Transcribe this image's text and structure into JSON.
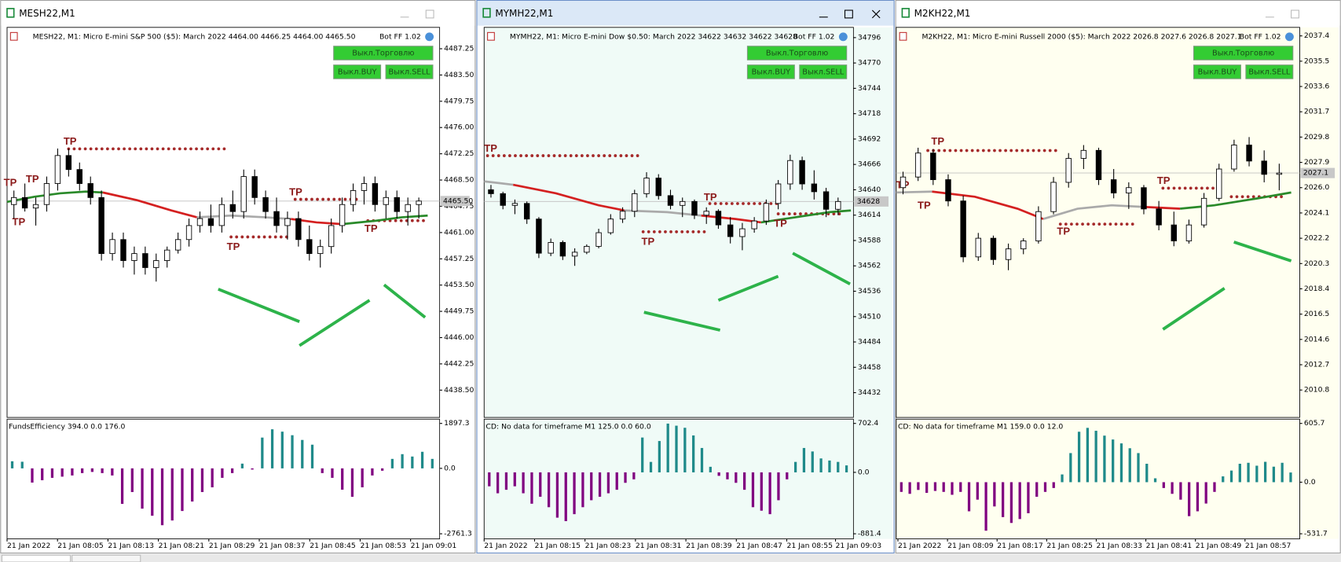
{
  "windows": [
    {
      "title": "MESH22,M1",
      "info": "MESH22, M1:  Micro E-mini S&P 500 ($5): March 2022  4464.00 4466.25 4464.00 4465.50",
      "bot": "Bot FF 1.02",
      "buttons": [
        "Выкл.Торговлю",
        "Выкл.BUY",
        "Выкл.SELL"
      ],
      "price_ylim": [
        4434.6,
        4490.3
      ],
      "price_ticks": [
        4487.25,
        {
          "value": 4483.5,
          "label": "4483.50"
        },
        4479.75,
        {
          "value": 4476,
          "label": "4476.00"
        },
        4472.25,
        {
          "value": 4468.5,
          "label": "4468.50"
        },
        4464.75,
        {
          "value": 4461,
          "label": "4461.00"
        },
        4457.25,
        {
          "value": 4453.5,
          "label": "4453.50"
        },
        4449.75,
        {
          "value": 4446,
          "label": "4446.00"
        },
        4442.25,
        {
          "value": 4438.5,
          "label": "4438.50"
        }
      ],
      "current_price": {
        "value": 4465.5,
        "label": "4465.50"
      },
      "tp_labels": [
        "TP",
        "TP",
        "TP",
        "TP",
        "TP",
        "TP",
        "TP"
      ],
      "candles": [
        [
          4465,
          4467,
          4463,
          4466
        ],
        [
          4466,
          4468,
          4464,
          4464.5
        ],
        [
          4464.5,
          4466,
          4462,
          4465
        ],
        [
          4465,
          4469,
          4464,
          4468
        ],
        [
          4468,
          4473,
          4467,
          4472
        ],
        [
          4472,
          4473,
          4469,
          4470
        ],
        [
          4470,
          4471,
          4467,
          4468
        ],
        [
          4468,
          4469,
          4465,
          4466
        ],
        [
          4466,
          4467,
          4457,
          4458
        ],
        [
          4458,
          4461,
          4457,
          4460
        ],
        [
          4460,
          4461,
          4456,
          4457
        ],
        [
          4457,
          4459,
          4455,
          4458
        ],
        [
          4458,
          4459,
          4455,
          4456
        ],
        [
          4456,
          4458,
          4454,
          4457
        ],
        [
          4457,
          4459,
          4456,
          4458.5
        ],
        [
          4458.5,
          4461,
          4458,
          4460
        ],
        [
          4460,
          4463,
          4459,
          4462
        ],
        [
          4462,
          4464,
          4461,
          4463
        ],
        [
          4463,
          4465,
          4461,
          4462
        ],
        [
          4462,
          4466,
          4461,
          4465
        ],
        [
          4465,
          4467,
          4463,
          4464
        ],
        [
          4464,
          4470,
          4463,
          4469
        ],
        [
          4469,
          4470,
          4465,
          4466
        ],
        [
          4466,
          4467,
          4463,
          4464
        ],
        [
          4464,
          4466,
          4461,
          4462
        ],
        [
          4462,
          4464,
          4460,
          4463
        ],
        [
          4463,
          4464,
          4459,
          4460
        ],
        [
          4460,
          4462,
          4457,
          4458
        ],
        [
          4458,
          4460,
          4456,
          4459
        ],
        [
          4459,
          4463,
          4458,
          4462
        ],
        [
          4462,
          4466,
          4461,
          4465
        ],
        [
          4465,
          4468,
          4464,
          4467
        ],
        [
          4467,
          4469,
          4465,
          4468
        ],
        [
          4468,
          4469,
          4464,
          4465
        ],
        [
          4465,
          4467,
          4463,
          4466
        ],
        [
          4466,
          4467,
          4463,
          4464
        ],
        [
          4464,
          4466,
          4462,
          4465
        ],
        [
          4465,
          4466,
          4463,
          4465.5
        ]
      ],
      "indicator": {
        "label": "FundsEfficiency 394.0 0.0 176.0",
        "ylim": [
          -2761.3,
          1897.3
        ],
        "ticks": [
          1897.3,
          {
            "value": 0,
            "label": "0.0"
          },
          -2761.3
        ],
        "values": [
          300,
          280,
          -600,
          -500,
          -400,
          -350,
          -300,
          -200,
          -150,
          -200,
          -300,
          -1500,
          -1000,
          -1700,
          -2000,
          -2400,
          -2200,
          -1800,
          -1400,
          -1000,
          -800,
          -400,
          -200,
          200,
          -50,
          1300,
          1650,
          1550,
          1400,
          1200,
          1000,
          -200,
          -400,
          -900,
          -1200,
          -800,
          -300,
          -100,
          400,
          600,
          500,
          700,
          400
        ]
      },
      "time_labels": [
        "21 Jan 2022",
        "21 Jan 08:05",
        "21 Jan 08:13",
        "21 Jan 08:21",
        "21 Jan 08:29",
        "21 Jan 08:37",
        "21 Jan 08:45",
        "21 Jan 08:53",
        "21 Jan 09:01"
      ]
    },
    {
      "title": "MYMH22,M1",
      "info": "MYMH22, M1:  Micro E-mini Dow $0.50: March 2022  34622 34632 34622 34628",
      "bot": "Bot FF 1.02",
      "buttons": [
        "Выкл.Торговлю",
        "Выкл.BUY",
        "Выкл.SELL"
      ],
      "price_ylim": [
        34406.6,
        34806.5
      ],
      "price_ticks": [
        34796,
        34770,
        34744,
        34718,
        34692,
        34666,
        34640,
        34614,
        34588,
        34562,
        34536,
        34510,
        34484,
        34458,
        34432
      ],
      "current_price": {
        "value": 34628,
        "label": "34628"
      },
      "tp_labels": [
        "TP",
        "TP",
        "TP",
        "TP"
      ],
      "candles": [
        [
          34640,
          34645,
          34632,
          34636
        ],
        [
          34636,
          34638,
          34620,
          34624
        ],
        [
          34624,
          34630,
          34615,
          34626
        ],
        [
          34626,
          34628,
          34605,
          34610
        ],
        [
          34610,
          34612,
          34570,
          34575
        ],
        [
          34575,
          34590,
          34572,
          34586
        ],
        [
          34586,
          34588,
          34568,
          34572
        ],
        [
          34572,
          34580,
          34562,
          34576
        ],
        [
          34576,
          34584,
          34574,
          34582
        ],
        [
          34582,
          34600,
          34580,
          34596
        ],
        [
          34596,
          34615,
          34594,
          34610
        ],
        [
          34610,
          34622,
          34606,
          34618
        ],
        [
          34618,
          34640,
          34612,
          34636
        ],
        [
          34636,
          34658,
          34632,
          34652
        ],
        [
          34652,
          34656,
          34630,
          34634
        ],
        [
          34634,
          34640,
          34620,
          34624
        ],
        [
          34624,
          34632,
          34612,
          34628
        ],
        [
          34628,
          34630,
          34610,
          34614
        ],
        [
          34614,
          34622,
          34605,
          34618
        ],
        [
          34618,
          34620,
          34600,
          34604
        ],
        [
          34604,
          34612,
          34585,
          34592
        ],
        [
          34592,
          34606,
          34578,
          34600
        ],
        [
          34600,
          34612,
          34596,
          34608
        ],
        [
          34608,
          34630,
          34604,
          34626
        ],
        [
          34626,
          34650,
          34620,
          34646
        ],
        [
          34646,
          34676,
          34640,
          34670
        ],
        [
          34670,
          34674,
          34640,
          34646
        ],
        [
          34646,
          34660,
          34630,
          34638
        ],
        [
          34638,
          34642,
          34612,
          34620
        ],
        [
          34620,
          34632,
          34614,
          34628
        ]
      ],
      "indicator": {
        "label": "CD: No data for timeframe M1 125.0 0.0 60.0",
        "ylim": [
          -881.4,
          702.4
        ],
        "ticks": [
          702.4,
          {
            "value": 0,
            "label": "0.0"
          },
          -881.4
        ],
        "values": [
          -200,
          -300,
          -250,
          -200,
          -300,
          -450,
          -350,
          -500,
          -650,
          -700,
          -600,
          -500,
          -400,
          -350,
          -300,
          -250,
          -150,
          -100,
          500,
          150,
          450,
          700,
          670,
          640,
          530,
          350,
          80,
          -50,
          -100,
          -150,
          -250,
          -500,
          -550,
          -600,
          -400,
          -100,
          150,
          350,
          300,
          200,
          170,
          150,
          100
        ]
      },
      "time_labels": [
        "21 Jan 2022",
        "21 Jan 08:15",
        "21 Jan 08:23",
        "21 Jan 08:31",
        "21 Jan 08:39",
        "21 Jan 08:47",
        "21 Jan 08:55",
        "21 Jan 09:03"
      ]
    },
    {
      "title": "M2KH22,M1",
      "info": "M2KH22, M1:  Micro E-mini Russell 2000 ($5): March 2022  2026.8 2027.6 2026.8 2027.1",
      "bot": "Bot FF 1.02",
      "buttons": [
        "Выкл.Торговлю",
        "Выкл.BUY",
        "Выкл.SELL"
      ],
      "price_ylim": [
        2008.74,
        2038.04
      ],
      "price_ticks": [
        2037.4,
        2035.5,
        2033.6,
        2031.7,
        2029.8,
        2027.9,
        {
          "value": 2026,
          "label": "2026.0"
        },
        2024.1,
        2022.2,
        2020.3,
        2018.4,
        2016.5,
        2014.6,
        2012.7,
        2010.8
      ],
      "current_price": {
        "value": 2027.1,
        "label": "2027.1"
      },
      "tp_labels": [
        "TP",
        "TP",
        "TP",
        "TP",
        "TP"
      ],
      "candles": [
        [
          2026,
          2027.2,
          2025.5,
          2026.8
        ],
        [
          2026.8,
          2029,
          2026.5,
          2028.6
        ],
        [
          2028.6,
          2028.9,
          2026.2,
          2026.6
        ],
        [
          2026.6,
          2027,
          2024.6,
          2025
        ],
        [
          2025,
          2025.4,
          2020.4,
          2020.8
        ],
        [
          2020.8,
          2022.6,
          2020.5,
          2022.2
        ],
        [
          2022.2,
          2022.4,
          2020.2,
          2020.6
        ],
        [
          2020.6,
          2021.8,
          2019.8,
          2021.4
        ],
        [
          2021.4,
          2022.2,
          2021,
          2022
        ],
        [
          2022,
          2024.6,
          2021.8,
          2024.2
        ],
        [
          2024.2,
          2026.8,
          2024,
          2026.4
        ],
        [
          2026.4,
          2028.6,
          2026,
          2028.2
        ],
        [
          2028.2,
          2029.2,
          2027.4,
          2028.8
        ],
        [
          2028.8,
          2029,
          2026.2,
          2026.6
        ],
        [
          2026.6,
          2027.4,
          2025.2,
          2025.6
        ],
        [
          2025.6,
          2026.4,
          2024.4,
          2026
        ],
        [
          2026,
          2026.2,
          2024,
          2024.4
        ],
        [
          2024.4,
          2025,
          2022.8,
          2023.2
        ],
        [
          2023.2,
          2024.2,
          2021.6,
          2022
        ],
        [
          2022,
          2023.6,
          2021.8,
          2023.2
        ],
        [
          2023.2,
          2025.6,
          2023,
          2025.2
        ],
        [
          2025.2,
          2027.8,
          2025,
          2027.4
        ],
        [
          2027.4,
          2029.6,
          2027.2,
          2029.2
        ],
        [
          2029.2,
          2029.8,
          2027.6,
          2028
        ],
        [
          2028,
          2028.8,
          2026.4,
          2027
        ],
        [
          2027,
          2027.8,
          2025.8,
          2027.1
        ]
      ],
      "indicator": {
        "label": "CD: No data for timeframe M1 159.0 0.0 12.0",
        "ylim": [
          -531.7,
          605.7
        ],
        "ticks": [
          605.7,
          {
            "value": 0,
            "label": "0.0"
          },
          -531.7
        ],
        "values": [
          -100,
          -120,
          -80,
          -110,
          -90,
          -100,
          -130,
          -100,
          -300,
          -180,
          -500,
          -250,
          -360,
          -420,
          -380,
          -320,
          -150,
          -100,
          -60,
          80,
          300,
          520,
          560,
          530,
          480,
          440,
          400,
          350,
          300,
          190,
          40,
          -60,
          -120,
          -180,
          -350,
          -300,
          -220,
          -100,
          60,
          120,
          190,
          200,
          170,
          210,
          160,
          200,
          100
        ]
      },
      "time_labels": [
        "21 Jan 2022",
        "21 Jan 08:09",
        "21 Jan 08:17",
        "21 Jan 08:25",
        "21 Jan 08:33",
        "21 Jan 08:41",
        "21 Jan 08:49",
        "21 Jan 08:57"
      ]
    }
  ]
}
